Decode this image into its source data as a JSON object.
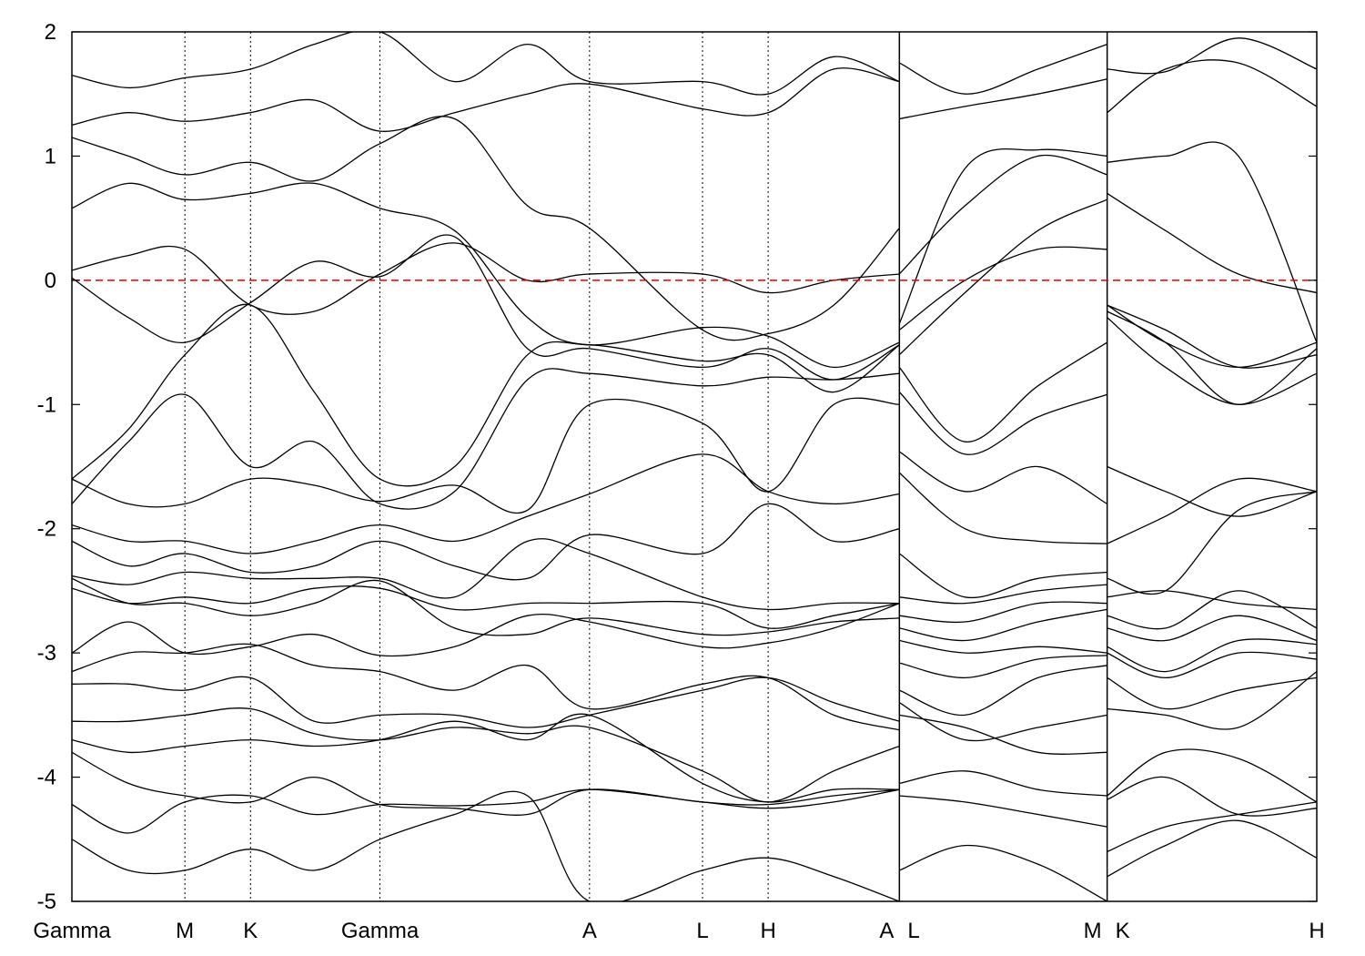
{
  "chart_data": {
    "type": "line",
    "title": "",
    "xlabel": "",
    "ylabel": "",
    "ylim": [
      -5,
      2
    ],
    "yticks": [
      -5,
      -4,
      -3,
      -2,
      -1,
      0,
      1,
      2
    ],
    "ytick_labels": [
      "-5",
      "-4",
      "-3",
      "-2",
      "-1",
      "0",
      "1",
      "2"
    ],
    "xlim": [
      0,
      6.83
    ],
    "grid": false,
    "fermi_level": {
      "value": 0,
      "color": "#e00000",
      "style": "dashed"
    },
    "band_color": "#000000",
    "kpoints": [
      {
        "label": "Gamma",
        "k": 0
      },
      {
        "label": "M",
        "k": 0.62
      },
      {
        "label": "K",
        "k": 0.98
      },
      {
        "label": "Gamma",
        "k": 1.69
      },
      {
        "label": "A",
        "k": 2.84
      },
      {
        "label": "L",
        "k": 3.46
      },
      {
        "label": "H",
        "k": 3.82
      },
      {
        "label": "A",
        "k": 4.54,
        "align": "end"
      },
      {
        "label": "L",
        "k": 4.54,
        "align": "start"
      },
      {
        "label": "M",
        "k": 5.68,
        "align": "end"
      },
      {
        "label": "K",
        "k": 5.68,
        "align": "start"
      },
      {
        "label": "H",
        "k": 6.83
      }
    ],
    "panel_breaks": [
      4.54,
      5.68
    ],
    "panels_k": [
      [
        0,
        0.31,
        0.62,
        0.98,
        1.33,
        1.69,
        2.1,
        2.5,
        2.84,
        3.46,
        3.82,
        4.18,
        4.54
      ],
      [
        4.54,
        4.9,
        5.3,
        5.68
      ],
      [
        5.68,
        6.0,
        6.4,
        6.83
      ]
    ],
    "bands": [
      [
        [
          0.02,
          -0.3,
          -0.5,
          -0.18,
          0.15,
          0.03,
          0.35,
          -0.55,
          -0.55,
          -0.7,
          -0.55,
          -0.8,
          -0.52
        ],
        [
          -0.35,
          0.9,
          1.05,
          1.0
        ],
        [
          0.95,
          1.0,
          1.0,
          -0.5
        ]
      ],
      [
        [
          0.08,
          0.2,
          0.25,
          -0.2,
          -0.25,
          0.05,
          0.3,
          0.0,
          0.05,
          0.05,
          -0.1,
          0.0,
          0.05
        ],
        [
          0.05,
          0.6,
          1.0,
          0.85
        ],
        [
          0.7,
          0.4,
          0.05,
          -0.1
        ]
      ],
      [
        [
          0.58,
          0.78,
          0.65,
          0.7,
          0.78,
          0.58,
          0.4,
          -0.3,
          -0.52,
          -0.38,
          -0.45,
          -0.7,
          -0.5
        ],
        [
          -0.4,
          0.0,
          0.25,
          0.25
        ],
        [
          -0.2,
          -0.5,
          -0.7,
          -0.5
        ]
      ],
      [
        [
          1.15,
          1.0,
          0.85,
          0.95,
          0.8,
          1.1,
          1.3,
          0.6,
          0.42,
          -0.4,
          -0.43,
          -0.2,
          0.42
        ],
        [
          -0.6,
          -0.1,
          0.4,
          0.65
        ],
        [
          -0.25,
          -0.5,
          -1.0,
          -0.55
        ]
      ],
      [
        [
          1.25,
          1.35,
          1.28,
          1.35,
          1.45,
          1.2,
          1.35,
          1.5,
          1.58,
          1.38,
          1.35,
          1.7,
          1.6
        ],
        [
          1.3,
          1.4,
          1.5,
          1.62
        ],
        [
          1.35,
          1.7,
          1.75,
          1.4
        ]
      ],
      [
        [
          1.65,
          1.55,
          1.63,
          1.7,
          1.9,
          2.0,
          1.6,
          1.9,
          1.6,
          1.6,
          1.5,
          1.8,
          1.6
        ],
        [
          1.75,
          1.5,
          1.7,
          1.9
        ],
        [
          1.7,
          1.68,
          1.95,
          1.7
        ]
      ],
      [
        [
          -1.6,
          -1.2,
          -0.6,
          -0.2,
          -0.9,
          -1.6,
          -1.5,
          -0.6,
          -0.52,
          -0.65,
          -0.6,
          -0.9,
          -0.52
        ],
        [
          -0.7,
          -1.3,
          -0.85,
          -0.5
        ],
        [
          -0.2,
          -0.4,
          -0.7,
          -0.6
        ]
      ],
      [
        [
          -1.8,
          -1.3,
          -0.92,
          -1.5,
          -1.3,
          -1.8,
          -1.7,
          -0.8,
          -0.75,
          -0.85,
          -0.78,
          -0.8,
          -0.75
        ],
        [
          -0.9,
          -1.4,
          -1.1,
          -0.92
        ],
        [
          -0.3,
          -0.7,
          -1.0,
          -0.75
        ]
      ],
      [
        [
          -1.6,
          -1.8,
          -1.8,
          -1.6,
          -1.65,
          -1.78,
          -1.65,
          -1.85,
          -1.0,
          -1.15,
          -1.7,
          -1.0,
          -1.0
        ],
        [
          -1.38,
          -1.7,
          -1.5,
          -1.8
        ],
        [
          -1.5,
          -1.7,
          -1.9,
          -1.7
        ]
      ],
      [
        [
          -1.97,
          -2.1,
          -2.1,
          -2.2,
          -2.1,
          -1.97,
          -2.1,
          -1.9,
          -1.72,
          -1.4,
          -1.7,
          -1.8,
          -1.72
        ],
        [
          -1.55,
          -2.0,
          -2.1,
          -2.12
        ],
        [
          -2.12,
          -1.9,
          -1.6,
          -1.7
        ]
      ],
      [
        [
          -2.1,
          -2.3,
          -2.2,
          -2.35,
          -2.3,
          -2.1,
          -2.3,
          -2.4,
          -2.05,
          -2.2,
          -1.8,
          -2.1,
          -2.0
        ],
        [
          -2.2,
          -2.55,
          -2.4,
          -2.35
        ],
        [
          -2.4,
          -2.5,
          -1.85,
          -1.7
        ]
      ],
      [
        [
          -2.38,
          -2.45,
          -2.35,
          -2.4,
          -2.4,
          -2.4,
          -2.55,
          -2.1,
          -2.2,
          -2.55,
          -2.65,
          -2.6,
          -2.6
        ],
        [
          -2.55,
          -2.6,
          -2.5,
          -2.45
        ],
        [
          -2.55,
          -2.5,
          -2.6,
          -2.65
        ]
      ],
      [
        [
          -2.48,
          -2.6,
          -2.55,
          -2.6,
          -2.48,
          -2.48,
          -2.65,
          -2.6,
          -2.6,
          -2.6,
          -2.8,
          -2.7,
          -2.6
        ],
        [
          -2.7,
          -2.75,
          -2.6,
          -2.6
        ],
        [
          -2.7,
          -2.8,
          -2.5,
          -2.8
        ]
      ],
      [
        [
          -2.4,
          -2.6,
          -2.6,
          -2.7,
          -2.6,
          -2.42,
          -2.8,
          -2.85,
          -2.72,
          -2.85,
          -2.83,
          -2.75,
          -2.72
        ],
        [
          -2.8,
          -2.9,
          -2.75,
          -2.65
        ],
        [
          -2.8,
          -2.9,
          -2.7,
          -2.9
        ]
      ],
      [
        [
          -3.0,
          -2.75,
          -3.0,
          -2.95,
          -2.85,
          -3.02,
          -2.95,
          -2.7,
          -2.75,
          -2.95,
          -2.92,
          -2.8,
          -2.6
        ],
        [
          -2.9,
          -3.0,
          -2.95,
          -3.0
        ],
        [
          -2.95,
          -3.15,
          -2.9,
          -2.93
        ]
      ],
      [
        [
          -3.15,
          -3.0,
          -3.0,
          -2.93,
          -3.1,
          -3.15,
          -3.3,
          -3.1,
          -3.45,
          -3.25,
          -3.2,
          -3.5,
          -3.62
        ],
        [
          -3.08,
          -3.2,
          -3.05,
          -3.02
        ],
        [
          -3.0,
          -3.2,
          -3.0,
          -3.05
        ]
      ],
      [
        [
          -3.25,
          -3.25,
          -3.3,
          -3.2,
          -3.55,
          -3.5,
          -3.5,
          -3.6,
          -3.5,
          -3.3,
          -3.2,
          -3.4,
          -3.55
        ],
        [
          -3.3,
          -3.5,
          -3.2,
          -3.1
        ],
        [
          -3.2,
          -3.45,
          -3.3,
          -3.2
        ]
      ],
      [
        [
          -3.55,
          -3.55,
          -3.5,
          -3.45,
          -3.65,
          -3.7,
          -3.6,
          -3.65,
          -3.6,
          -3.95,
          -4.2,
          -3.95,
          -3.75
        ],
        [
          -3.4,
          -3.7,
          -3.6,
          -3.5
        ],
        [
          -3.45,
          -3.5,
          -3.6,
          -3.15
        ]
      ],
      [
        [
          -3.7,
          -3.8,
          -3.75,
          -3.7,
          -3.75,
          -3.7,
          -3.55,
          -3.7,
          -3.5,
          -4.05,
          -4.2,
          -4.1,
          -4.1
        ],
        [
          -3.5,
          -3.6,
          -3.8,
          -3.8
        ],
        [
          -4.15,
          -3.8,
          -3.85,
          -4.2
        ]
      ],
      [
        [
          -3.8,
          -4.05,
          -4.15,
          -4.2,
          -4.0,
          -4.22,
          -4.25,
          -4.3,
          -4.1,
          -4.2,
          -4.22,
          -4.15,
          -4.1
        ],
        [
          -4.05,
          -3.95,
          -4.1,
          -4.15
        ],
        [
          -4.18,
          -4.0,
          -4.3,
          -4.25
        ]
      ],
      [
        [
          -4.22,
          -4.45,
          -4.2,
          -4.15,
          -4.3,
          -4.22,
          -4.23,
          -4.2,
          -4.1,
          -4.2,
          -4.25,
          -4.2,
          -4.1
        ],
        [
          -4.15,
          -4.2,
          -4.3,
          -4.4
        ],
        [
          -4.6,
          -4.4,
          -4.3,
          -4.2
        ]
      ],
      [
        [
          -4.5,
          -4.75,
          -4.75,
          -4.58,
          -4.75,
          -4.5,
          -4.3,
          -4.15,
          -5.0,
          -4.75,
          -4.65,
          -4.8,
          -5.0
        ],
        [
          -4.75,
          -4.55,
          -4.7,
          -5.0
        ],
        [
          -4.8,
          -4.55,
          -4.35,
          -4.65
        ]
      ]
    ]
  }
}
